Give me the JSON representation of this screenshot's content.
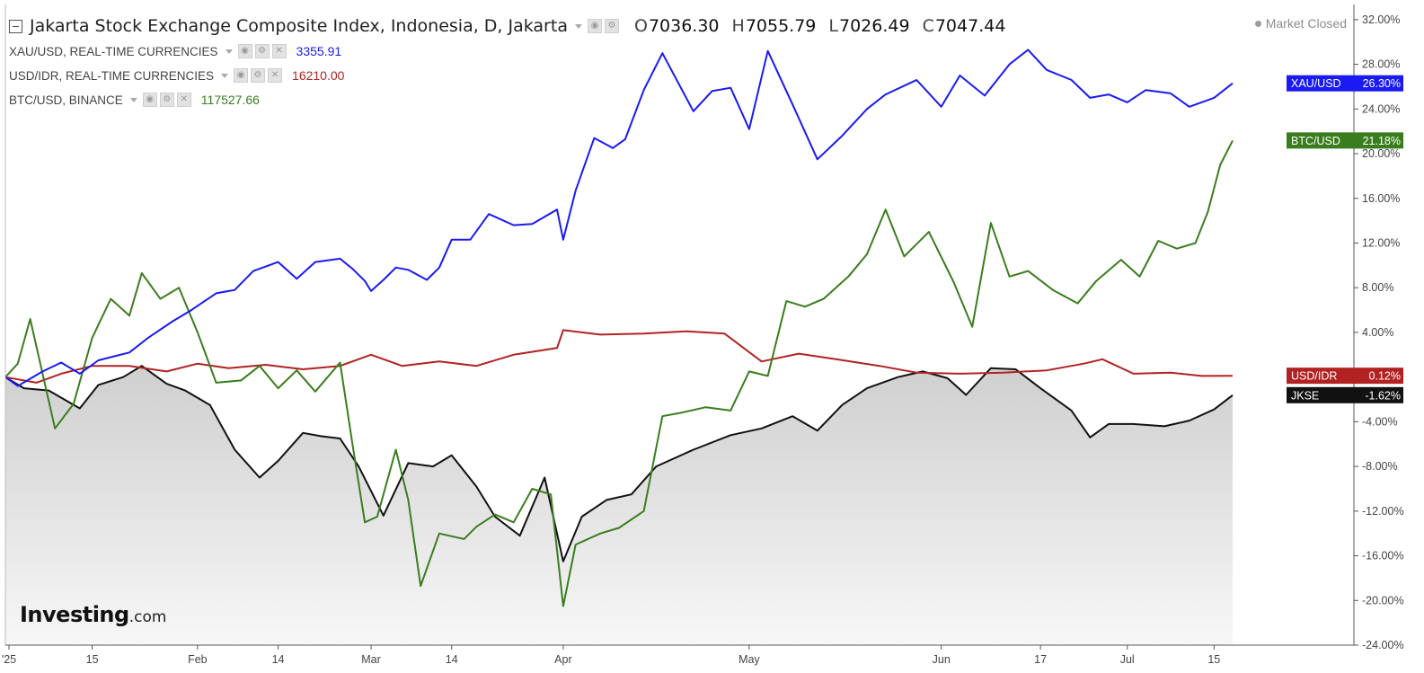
{
  "header": {
    "title": "Jakarta Stock Exchange Composite Index, Indonesia, D, Jakarta",
    "ohlc": [
      {
        "key": "O",
        "value": "7036.30"
      },
      {
        "key": "H",
        "value": "7055.79"
      },
      {
        "key": "L",
        "value": "7026.49"
      },
      {
        "key": "C",
        "value": "7047.44"
      }
    ],
    "market_status": "Market Closed"
  },
  "series_list": [
    {
      "label": "XAU/USD, REAL-TIME CURRENCIES",
      "value": "3355.91",
      "color": "#1a1af5"
    },
    {
      "label": "USD/IDR, REAL-TIME CURRENCIES",
      "value": "16210.00",
      "color": "#b22222"
    },
    {
      "label": "BTC/USD, BINANCE",
      "value": "117527.66",
      "color": "#3a7d1e"
    }
  ],
  "logo": {
    "main": "Investing",
    "suffix": ".com"
  },
  "chart_data": {
    "type": "line",
    "y_unit": "%",
    "ylim": [
      -24,
      34
    ],
    "y_ticks": [
      "32.00%",
      "28.00%",
      "24.00%",
      "20.00%",
      "16.00%",
      "12.00%",
      "8.00%",
      "4.00%",
      "-4.00%",
      "-8.00%",
      "-12.00%",
      "-16.00%",
      "-20.00%",
      "-24.00%"
    ],
    "y_tick_values": [
      32,
      28,
      24,
      20,
      16,
      12,
      8,
      4,
      -4,
      -8,
      -12,
      -16,
      -20,
      -24
    ],
    "x_ticks": [
      {
        "label": "'25",
        "date": "2025-01-01"
      },
      {
        "label": "15",
        "date": "2025-01-15"
      },
      {
        "label": "Feb",
        "date": "2025-02-01"
      },
      {
        "label": "14",
        "date": "2025-02-14"
      },
      {
        "label": "Mar",
        "date": "2025-03-01"
      },
      {
        "label": "14",
        "date": "2025-03-14"
      },
      {
        "label": "Apr",
        "date": "2025-04-01"
      },
      {
        "label": "May",
        "date": "2025-05-01"
      },
      {
        "label": "Jun",
        "date": "2025-06-01"
      },
      {
        "label": "17",
        "date": "2025-06-17"
      },
      {
        "label": "Jul",
        "date": "2025-07-01"
      },
      {
        "label": "15",
        "date": "2025-07-15"
      }
    ],
    "xlim": [
      "2025-01-01",
      "2025-07-30"
    ],
    "series": [
      {
        "name": "XAU/USD",
        "color": "#1a1af5",
        "last_label": "26.30%",
        "points": [
          [
            "2025-01-01",
            0.0
          ],
          [
            "2025-01-03",
            -0.8
          ],
          [
            "2025-01-07",
            0.5
          ],
          [
            "2025-01-10",
            1.3
          ],
          [
            "2025-01-13",
            0.3
          ],
          [
            "2025-01-16",
            1.5
          ],
          [
            "2025-01-21",
            2.2
          ],
          [
            "2025-01-24",
            3.5
          ],
          [
            "2025-01-28",
            5.0
          ],
          [
            "2025-01-31",
            6.0
          ],
          [
            "2025-02-04",
            7.5
          ],
          [
            "2025-02-07",
            7.8
          ],
          [
            "2025-02-10",
            9.5
          ],
          [
            "2025-02-14",
            10.3
          ],
          [
            "2025-02-17",
            8.8
          ],
          [
            "2025-02-20",
            10.3
          ],
          [
            "2025-02-24",
            10.6
          ],
          [
            "2025-02-26",
            9.7
          ],
          [
            "2025-02-28",
            8.6
          ],
          [
            "2025-03-01",
            7.7
          ],
          [
            "2025-03-03",
            8.7
          ],
          [
            "2025-03-05",
            9.8
          ],
          [
            "2025-03-07",
            9.6
          ],
          [
            "2025-03-10",
            8.7
          ],
          [
            "2025-03-12",
            9.8
          ],
          [
            "2025-03-14",
            12.3
          ],
          [
            "2025-03-17",
            12.3
          ],
          [
            "2025-03-20",
            14.6
          ],
          [
            "2025-03-24",
            13.6
          ],
          [
            "2025-03-27",
            13.7
          ],
          [
            "2025-03-31",
            15.0
          ],
          [
            "2025-04-01",
            12.3
          ],
          [
            "2025-04-03",
            16.7
          ],
          [
            "2025-04-06",
            21.4
          ],
          [
            "2025-04-09",
            20.5
          ],
          [
            "2025-04-11",
            21.3
          ],
          [
            "2025-04-14",
            25.7
          ],
          [
            "2025-04-17",
            29.0
          ],
          [
            "2025-04-22",
            23.8
          ],
          [
            "2025-04-25",
            25.6
          ],
          [
            "2025-04-28",
            25.9
          ],
          [
            "2025-05-01",
            22.2
          ],
          [
            "2025-05-04",
            29.2
          ],
          [
            "2025-05-08",
            24.4
          ],
          [
            "2025-05-12",
            19.5
          ],
          [
            "2025-05-16",
            21.6
          ],
          [
            "2025-05-20",
            24.0
          ],
          [
            "2025-05-23",
            25.3
          ],
          [
            "2025-05-28",
            26.6
          ],
          [
            "2025-06-01",
            24.2
          ],
          [
            "2025-06-04",
            27.0
          ],
          [
            "2025-06-08",
            25.2
          ],
          [
            "2025-06-12",
            28.0
          ],
          [
            "2025-06-15",
            29.3
          ],
          [
            "2025-06-18",
            27.5
          ],
          [
            "2025-06-22",
            26.6
          ],
          [
            "2025-06-25",
            25.0
          ],
          [
            "2025-06-28",
            25.3
          ],
          [
            "2025-07-01",
            24.6
          ],
          [
            "2025-07-04",
            25.7
          ],
          [
            "2025-07-08",
            25.4
          ],
          [
            "2025-07-11",
            24.2
          ],
          [
            "2025-07-15",
            25.0
          ],
          [
            "2025-07-18",
            26.3
          ]
        ]
      },
      {
        "name": "BTC/USD",
        "color": "#3a7d1e",
        "last_label": "21.18%",
        "points": [
          [
            "2025-01-01",
            0.0
          ],
          [
            "2025-01-03",
            1.2
          ],
          [
            "2025-01-05",
            5.2
          ],
          [
            "2025-01-09",
            -4.6
          ],
          [
            "2025-01-12",
            -2.4
          ],
          [
            "2025-01-15",
            3.5
          ],
          [
            "2025-01-18",
            7.0
          ],
          [
            "2025-01-21",
            5.5
          ],
          [
            "2025-01-23",
            9.3
          ],
          [
            "2025-01-26",
            7.0
          ],
          [
            "2025-01-29",
            8.0
          ],
          [
            "2025-02-01",
            4.0
          ],
          [
            "2025-02-04",
            -0.5
          ],
          [
            "2025-02-08",
            -0.3
          ],
          [
            "2025-02-11",
            1.0
          ],
          [
            "2025-02-14",
            -1.0
          ],
          [
            "2025-02-17",
            0.6
          ],
          [
            "2025-02-20",
            -1.3
          ],
          [
            "2025-02-24",
            1.3
          ],
          [
            "2025-02-26",
            -6.0
          ],
          [
            "2025-02-28",
            -13.0
          ],
          [
            "2025-03-02",
            -12.5
          ],
          [
            "2025-03-05",
            -6.5
          ],
          [
            "2025-03-07",
            -11.0
          ],
          [
            "2025-03-09",
            -18.7
          ],
          [
            "2025-03-12",
            -14.0
          ],
          [
            "2025-03-16",
            -14.5
          ],
          [
            "2025-03-18",
            -13.4
          ],
          [
            "2025-03-21",
            -12.3
          ],
          [
            "2025-03-24",
            -13.0
          ],
          [
            "2025-03-27",
            -10.0
          ],
          [
            "2025-03-30",
            -10.5
          ],
          [
            "2025-04-01",
            -20.5
          ],
          [
            "2025-04-03",
            -15.0
          ],
          [
            "2025-04-07",
            -14.0
          ],
          [
            "2025-04-10",
            -13.5
          ],
          [
            "2025-04-14",
            -12.0
          ],
          [
            "2025-04-17",
            -3.5
          ],
          [
            "2025-04-20",
            -3.2
          ],
          [
            "2025-04-24",
            -2.7
          ],
          [
            "2025-04-28",
            -3.0
          ],
          [
            "2025-05-01",
            0.5
          ],
          [
            "2025-05-04",
            0.1
          ],
          [
            "2025-05-07",
            6.8
          ],
          [
            "2025-05-10",
            6.3
          ],
          [
            "2025-05-13",
            7.0
          ],
          [
            "2025-05-17",
            9.0
          ],
          [
            "2025-05-20",
            11.0
          ],
          [
            "2025-05-23",
            15.0
          ],
          [
            "2025-05-26",
            10.8
          ],
          [
            "2025-05-30",
            13.0
          ],
          [
            "2025-06-03",
            8.5
          ],
          [
            "2025-06-06",
            4.5
          ],
          [
            "2025-06-09",
            13.8
          ],
          [
            "2025-06-12",
            9.0
          ],
          [
            "2025-06-15",
            9.5
          ],
          [
            "2025-06-19",
            7.8
          ],
          [
            "2025-06-23",
            6.6
          ],
          [
            "2025-06-26",
            8.6
          ],
          [
            "2025-06-30",
            10.5
          ],
          [
            "2025-07-03",
            9.0
          ],
          [
            "2025-07-06",
            12.2
          ],
          [
            "2025-07-09",
            11.5
          ],
          [
            "2025-07-12",
            12.0
          ],
          [
            "2025-07-14",
            14.8
          ],
          [
            "2025-07-16",
            19.0
          ],
          [
            "2025-07-18",
            21.18
          ]
        ]
      },
      {
        "name": "USD/IDR",
        "color": "#b22222",
        "last_label": "0.12%",
        "points": [
          [
            "2025-01-01",
            0.0
          ],
          [
            "2025-01-06",
            -0.5
          ],
          [
            "2025-01-10",
            0.3
          ],
          [
            "2025-01-15",
            1.0
          ],
          [
            "2025-01-21",
            1.0
          ],
          [
            "2025-01-27",
            0.5
          ],
          [
            "2025-02-01",
            1.2
          ],
          [
            "2025-02-06",
            0.8
          ],
          [
            "2025-02-12",
            1.1
          ],
          [
            "2025-02-18",
            0.7
          ],
          [
            "2025-02-24",
            1.0
          ],
          [
            "2025-03-01",
            2.0
          ],
          [
            "2025-03-06",
            1.0
          ],
          [
            "2025-03-12",
            1.4
          ],
          [
            "2025-03-18",
            1.0
          ],
          [
            "2025-03-24",
            2.0
          ],
          [
            "2025-03-31",
            2.6
          ],
          [
            "2025-04-01",
            4.2
          ],
          [
            "2025-04-07",
            3.8
          ],
          [
            "2025-04-14",
            3.9
          ],
          [
            "2025-04-21",
            4.1
          ],
          [
            "2025-04-27",
            3.9
          ],
          [
            "2025-05-03",
            1.4
          ],
          [
            "2025-05-09",
            2.1
          ],
          [
            "2025-05-15",
            1.6
          ],
          [
            "2025-05-22",
            1.0
          ],
          [
            "2025-05-28",
            0.4
          ],
          [
            "2025-06-04",
            0.3
          ],
          [
            "2025-06-11",
            0.4
          ],
          [
            "2025-06-18",
            0.6
          ],
          [
            "2025-06-24",
            1.2
          ],
          [
            "2025-06-27",
            1.6
          ],
          [
            "2025-07-02",
            0.3
          ],
          [
            "2025-07-08",
            0.4
          ],
          [
            "2025-07-13",
            0.1
          ],
          [
            "2025-07-18",
            0.12
          ]
        ]
      },
      {
        "name": "JKSE",
        "color": "#111111",
        "last_label": "-1.62%",
        "fill": true,
        "points": [
          [
            "2025-01-01",
            0.0
          ],
          [
            "2025-01-04",
            -1.0
          ],
          [
            "2025-01-08",
            -1.2
          ],
          [
            "2025-01-13",
            -2.8
          ],
          [
            "2025-01-16",
            -0.7
          ],
          [
            "2025-01-20",
            0.0
          ],
          [
            "2025-01-23",
            1.0
          ],
          [
            "2025-01-27",
            -0.6
          ],
          [
            "2025-01-30",
            -1.2
          ],
          [
            "2025-02-03",
            -2.5
          ],
          [
            "2025-02-07",
            -6.5
          ],
          [
            "2025-02-11",
            -9.0
          ],
          [
            "2025-02-14",
            -7.5
          ],
          [
            "2025-02-18",
            -5.0
          ],
          [
            "2025-02-21",
            -5.3
          ],
          [
            "2025-02-24",
            -5.5
          ],
          [
            "2025-02-27",
            -8.0
          ],
          [
            "2025-03-03",
            -12.4
          ],
          [
            "2025-03-07",
            -7.7
          ],
          [
            "2025-03-11",
            -8.0
          ],
          [
            "2025-03-14",
            -7.0
          ],
          [
            "2025-03-18",
            -9.8
          ],
          [
            "2025-03-21",
            -12.5
          ],
          [
            "2025-03-25",
            -14.2
          ],
          [
            "2025-03-29",
            -9.0
          ],
          [
            "2025-04-01",
            -16.5
          ],
          [
            "2025-04-04",
            -12.5
          ],
          [
            "2025-04-08",
            -11.0
          ],
          [
            "2025-04-12",
            -10.5
          ],
          [
            "2025-04-16",
            -8.0
          ],
          [
            "2025-04-22",
            -6.5
          ],
          [
            "2025-04-28",
            -5.2
          ],
          [
            "2025-05-03",
            -4.6
          ],
          [
            "2025-05-08",
            -3.5
          ],
          [
            "2025-05-12",
            -4.8
          ],
          [
            "2025-05-16",
            -2.5
          ],
          [
            "2025-05-20",
            -1.0
          ],
          [
            "2025-05-25",
            0.0
          ],
          [
            "2025-05-29",
            0.5
          ],
          [
            "2025-06-02",
            -0.1
          ],
          [
            "2025-06-05",
            -1.6
          ],
          [
            "2025-06-09",
            0.8
          ],
          [
            "2025-06-13",
            0.7
          ],
          [
            "2025-06-17",
            -1.0
          ],
          [
            "2025-06-22",
            -3.0
          ],
          [
            "2025-06-25",
            -5.4
          ],
          [
            "2025-06-28",
            -4.2
          ],
          [
            "2025-07-02",
            -4.2
          ],
          [
            "2025-07-07",
            -4.4
          ],
          [
            "2025-07-11",
            -3.9
          ],
          [
            "2025-07-15",
            -2.9
          ],
          [
            "2025-07-18",
            -1.62
          ]
        ]
      }
    ]
  }
}
